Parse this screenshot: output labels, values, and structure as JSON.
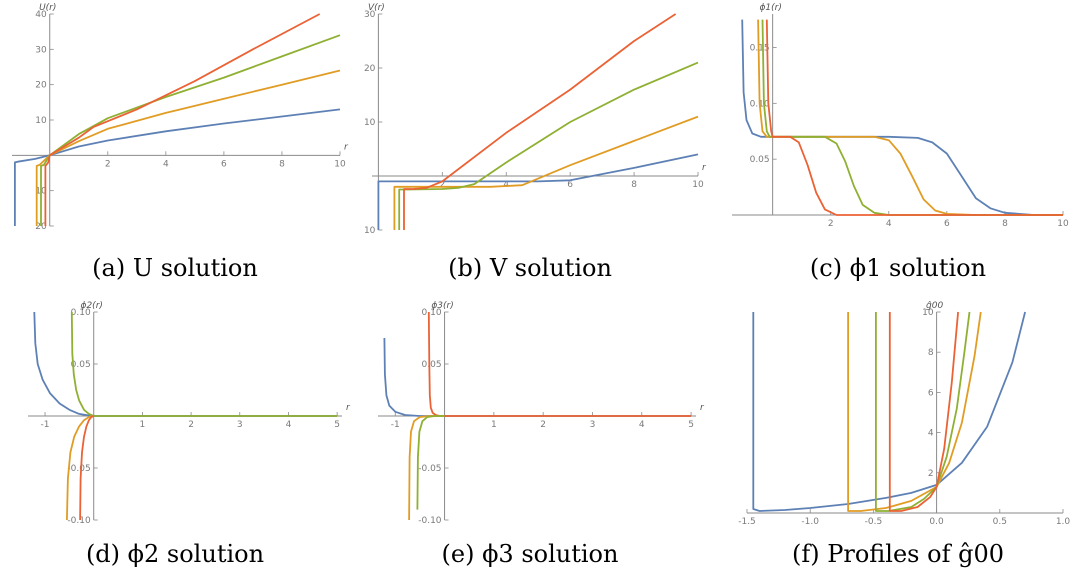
{
  "colors": {
    "blue": "#5E81B5",
    "orange": "#E19C24",
    "green": "#8FB032",
    "red": "#EB6235",
    "axis": "#8a8a8a"
  },
  "chart_data": [
    {
      "id": "a",
      "type": "line",
      "caption": "(a) U solution",
      "xlabel": "r",
      "ylabel": "U(r)",
      "xlim": [
        -1.3,
        10
      ],
      "ylim": [
        -20,
        40
      ],
      "xticks": [
        2,
        4,
        6,
        8,
        10
      ],
      "yticks": [
        -20,
        -10,
        10,
        20,
        30,
        40
      ],
      "ytick_labels": [
        "20",
        "10",
        "10",
        "20",
        "30",
        "40"
      ],
      "series": [
        {
          "color": "blue",
          "x": [
            -1.2,
            -1.2,
            -1.1,
            -0.5,
            0,
            1,
            2,
            4,
            6,
            8,
            10
          ],
          "y": [
            -20,
            -2,
            -1.8,
            -1,
            0,
            2.5,
            4.2,
            6.8,
            9,
            11,
            13
          ]
        },
        {
          "color": "orange",
          "x": [
            -0.45,
            -0.45,
            -0.35,
            0,
            1,
            2,
            4,
            4.5,
            6,
            8,
            10
          ],
          "y": [
            -20,
            -3,
            -2.7,
            0,
            4,
            7.5,
            12,
            13,
            16,
            20,
            24
          ]
        },
        {
          "color": "green",
          "x": [
            -0.3,
            -0.3,
            -0.2,
            0,
            1,
            2,
            4,
            6,
            8,
            10
          ],
          "y": [
            -20,
            -3,
            -2.7,
            0,
            6,
            10.5,
            16.5,
            22,
            28,
            34
          ]
        },
        {
          "color": "red",
          "x": [
            -0.15,
            -0.15,
            -0.05,
            0,
            0.5,
            1,
            1.5,
            3,
            5,
            7,
            9.3
          ],
          "y": [
            -20,
            -3,
            -2,
            0,
            2.5,
            5,
            8,
            13,
            21,
            30,
            40
          ]
        }
      ]
    },
    {
      "id": "b",
      "type": "line",
      "caption": "(b) V solution",
      "xlabel": "r",
      "ylabel": "V(r)",
      "xlim": [
        -0.2,
        10
      ],
      "ylim": [
        -10,
        30
      ],
      "xticks": [
        2,
        4,
        6,
        8,
        10
      ],
      "yticks": [
        -10,
        10,
        20,
        30
      ],
      "ytick_labels": [
        "10",
        "10",
        "20",
        "30"
      ],
      "series": [
        {
          "color": "blue",
          "x": [
            0,
            0,
            0.3,
            3,
            5,
            6,
            8,
            10
          ],
          "y": [
            -10,
            -1,
            -1,
            -1,
            -1,
            -0.8,
            1.5,
            4
          ]
        },
        {
          "color": "orange",
          "x": [
            0.5,
            0.5,
            0.8,
            2,
            3.5,
            4.5,
            6,
            8,
            10
          ],
          "y": [
            -10,
            -2,
            -2,
            -2,
            -2,
            -1.7,
            2,
            6.5,
            11
          ]
        },
        {
          "color": "green",
          "x": [
            0.65,
            0.65,
            0.95,
            2,
            2.5,
            3,
            4,
            6,
            8,
            10
          ],
          "y": [
            -10,
            -2.5,
            -2.5,
            -2.4,
            -2.2,
            -1.5,
            2.5,
            10,
            16,
            21
          ]
        },
        {
          "color": "red",
          "x": [
            0.8,
            0.8,
            1.1,
            1.5,
            2,
            4,
            6,
            8,
            9.3
          ],
          "y": [
            -10,
            -2.4,
            -2.4,
            -2.2,
            -1,
            8,
            16,
            25,
            30
          ]
        }
      ]
    },
    {
      "id": "c",
      "type": "line",
      "caption": "(c) ϕ1 solution",
      "xlabel": "",
      "ylabel": "ϕ1(r)",
      "xlim": [
        -1.4,
        10
      ],
      "ylim": [
        0,
        0.18
      ],
      "xticks": [
        2,
        4,
        6,
        8,
        10
      ],
      "yticks": [
        0.05,
        0.1,
        0.15
      ],
      "ytick_labels": [
        "0.05",
        "0.10",
        "0.15"
      ],
      "series": [
        {
          "color": "blue",
          "x": [
            -1.05,
            -1.0,
            -0.9,
            -0.7,
            -0.4,
            0,
            4,
            5,
            5.5,
            6,
            6.5,
            7,
            7.5,
            8,
            9,
            10
          ],
          "y": [
            0.175,
            0.11,
            0.085,
            0.073,
            0.07,
            0.07,
            0.07,
            0.069,
            0.065,
            0.055,
            0.035,
            0.015,
            0.006,
            0.002,
            0,
            0
          ]
        },
        {
          "color": "orange",
          "x": [
            -0.5,
            -0.45,
            -0.35,
            -0.2,
            0,
            3.5,
            4.0,
            4.4,
            4.8,
            5.2,
            5.6,
            6,
            7,
            10
          ],
          "y": [
            0.175,
            0.1,
            0.075,
            0.07,
            0.07,
            0.07,
            0.067,
            0.055,
            0.035,
            0.014,
            0.004,
            0.001,
            0,
            0
          ]
        },
        {
          "color": "green",
          "x": [
            -0.35,
            -0.3,
            -0.2,
            -0.1,
            0,
            1.8,
            2.2,
            2.5,
            2.8,
            3.1,
            3.5,
            4,
            10
          ],
          "y": [
            0.175,
            0.1,
            0.075,
            0.07,
            0.07,
            0.07,
            0.064,
            0.048,
            0.026,
            0.009,
            0.002,
            0,
            0
          ]
        },
        {
          "color": "red",
          "x": [
            -0.2,
            -0.15,
            -0.05,
            0,
            0.6,
            0.9,
            1.2,
            1.5,
            1.8,
            2.2,
            10
          ],
          "y": [
            0.175,
            0.1,
            0.075,
            0.07,
            0.07,
            0.065,
            0.045,
            0.02,
            0.005,
            0,
            0
          ]
        }
      ]
    },
    {
      "id": "d",
      "type": "line",
      "caption": "(d) ϕ2 solution",
      "xlabel": "r",
      "ylabel": "ϕ2(r)",
      "xlim": [
        -1.35,
        5.1
      ],
      "ylim": [
        -0.1,
        0.1
      ],
      "xticks": [
        -1,
        1,
        2,
        3,
        4,
        5
      ],
      "yticks": [
        -0.1,
        -0.05,
        0.05,
        0.1
      ],
      "ytick_labels": [
        "-0.10",
        "-0.05",
        "0.05",
        "0.10"
      ],
      "series": [
        {
          "color": "blue",
          "x": [
            -1.22,
            -1.2,
            -1.15,
            -1.05,
            -0.9,
            -0.7,
            -0.5,
            -0.3,
            -0.1,
            0,
            5
          ],
          "y": [
            0.1,
            0.07,
            0.05,
            0.035,
            0.022,
            0.012,
            0.006,
            0.002,
            0.0005,
            0,
            0
          ]
        },
        {
          "color": "green",
          "x": [
            -0.45,
            -0.44,
            -0.41,
            -0.36,
            -0.3,
            -0.2,
            -0.1,
            0,
            5
          ],
          "y": [
            0.1,
            0.06,
            0.04,
            0.025,
            0.015,
            0.006,
            0.002,
            0,
            0
          ]
        },
        {
          "color": "orange",
          "x": [
            -0.55,
            -0.53,
            -0.48,
            -0.4,
            -0.3,
            -0.2,
            -0.1,
            0
          ],
          "y": [
            -0.1,
            -0.06,
            -0.035,
            -0.02,
            -0.01,
            -0.004,
            -0.001,
            0
          ]
        },
        {
          "color": "red",
          "x": [
            -0.28,
            -0.27,
            -0.24,
            -0.2,
            -0.15,
            -0.1,
            -0.05,
            0
          ],
          "y": [
            -0.1,
            -0.06,
            -0.035,
            -0.02,
            -0.01,
            -0.004,
            -0.001,
            0
          ]
        }
      ]
    },
    {
      "id": "e",
      "type": "line",
      "caption": "(e) ϕ3 solution",
      "xlabel": "r",
      "ylabel": "ϕ3(r)",
      "xlim": [
        -1.35,
        5.1
      ],
      "ylim": [
        -0.1,
        0.1
      ],
      "xticks": [
        -1,
        1,
        2,
        3,
        4,
        5
      ],
      "yticks": [
        -0.1,
        -0.05,
        0.05,
        0.1
      ],
      "ytick_labels": [
        "-0.10",
        "-0.05",
        "0.05",
        "0.10"
      ],
      "series": [
        {
          "color": "blue",
          "x": [
            -1.22,
            -1.21,
            -1.18,
            -1.12,
            -1.0,
            -0.8,
            -0.5,
            -0.2,
            0,
            5
          ],
          "y": [
            0.075,
            0.04,
            0.02,
            0.01,
            0.004,
            0.001,
            0,
            0,
            0,
            0
          ]
        },
        {
          "color": "red",
          "x": [
            -0.32,
            -0.31,
            -0.3,
            -0.28,
            -0.24,
            -0.18,
            -0.1,
            0,
            5
          ],
          "y": [
            0.1,
            0.05,
            0.02,
            0.008,
            0.003,
            0.001,
            0,
            0,
            0
          ]
        },
        {
          "color": "orange",
          "x": [
            -0.72,
            -0.71,
            -0.68,
            -0.62,
            -0.5,
            -0.3,
            0
          ],
          "y": [
            -0.1,
            -0.04,
            -0.015,
            -0.005,
            -0.001,
            0,
            0
          ]
        },
        {
          "color": "green",
          "x": [
            -0.55,
            -0.54,
            -0.51,
            -0.45,
            -0.35,
            -0.2,
            0
          ],
          "y": [
            -0.09,
            -0.04,
            -0.015,
            -0.005,
            -0.001,
            0,
            0
          ]
        }
      ]
    },
    {
      "id": "f",
      "type": "line",
      "caption": "(f) Profiles of ĝ00",
      "xlabel": "",
      "ylabel": "ĝ00",
      "xlim": [
        -1.5,
        1.0
      ],
      "ylim": [
        0,
        10
      ],
      "xticks": [
        -1.5,
        -1.0,
        -0.5,
        0.0,
        0.5,
        1.0
      ],
      "yticks": [
        2,
        4,
        6,
        8,
        10
      ],
      "xtick_labels": [
        "-1.5",
        "-1.0",
        "-0.5",
        "0.0",
        "0.5",
        "1.0"
      ],
      "ytick_labels": [
        "2",
        "4",
        "6",
        "8",
        "10"
      ],
      "series": [
        {
          "color": "blue",
          "x": [
            -1.45,
            -1.45,
            -1.4,
            -1.2,
            -1.0,
            -0.7,
            -0.4,
            -0.2,
            0,
            0.2,
            0.4,
            0.6,
            0.7
          ],
          "y": [
            10,
            0.2,
            0.1,
            0.15,
            0.25,
            0.45,
            0.75,
            1.0,
            1.4,
            2.5,
            4.3,
            7.5,
            10
          ]
        },
        {
          "color": "orange",
          "x": [
            -0.7,
            -0.7,
            -0.6,
            -0.4,
            -0.2,
            0,
            0.1,
            0.2,
            0.3,
            0.35
          ],
          "y": [
            10,
            0.1,
            0.1,
            0.25,
            0.6,
            1.3,
            2.5,
            4.5,
            7.8,
            10
          ]
        },
        {
          "color": "green",
          "x": [
            -0.48,
            -0.48,
            -0.38,
            -0.2,
            -0.1,
            0,
            0.08,
            0.16,
            0.22,
            0.26
          ],
          "y": [
            10,
            0.1,
            0.1,
            0.3,
            0.7,
            1.3,
            2.8,
            5.2,
            8,
            10
          ]
        },
        {
          "color": "red",
          "x": [
            -0.37,
            -0.37,
            -0.28,
            -0.15,
            -0.05,
            0,
            0.06,
            0.12,
            0.17
          ],
          "y": [
            10,
            0.1,
            0.1,
            0.3,
            0.8,
            1.3,
            3.2,
            6.5,
            10
          ]
        }
      ]
    }
  ]
}
